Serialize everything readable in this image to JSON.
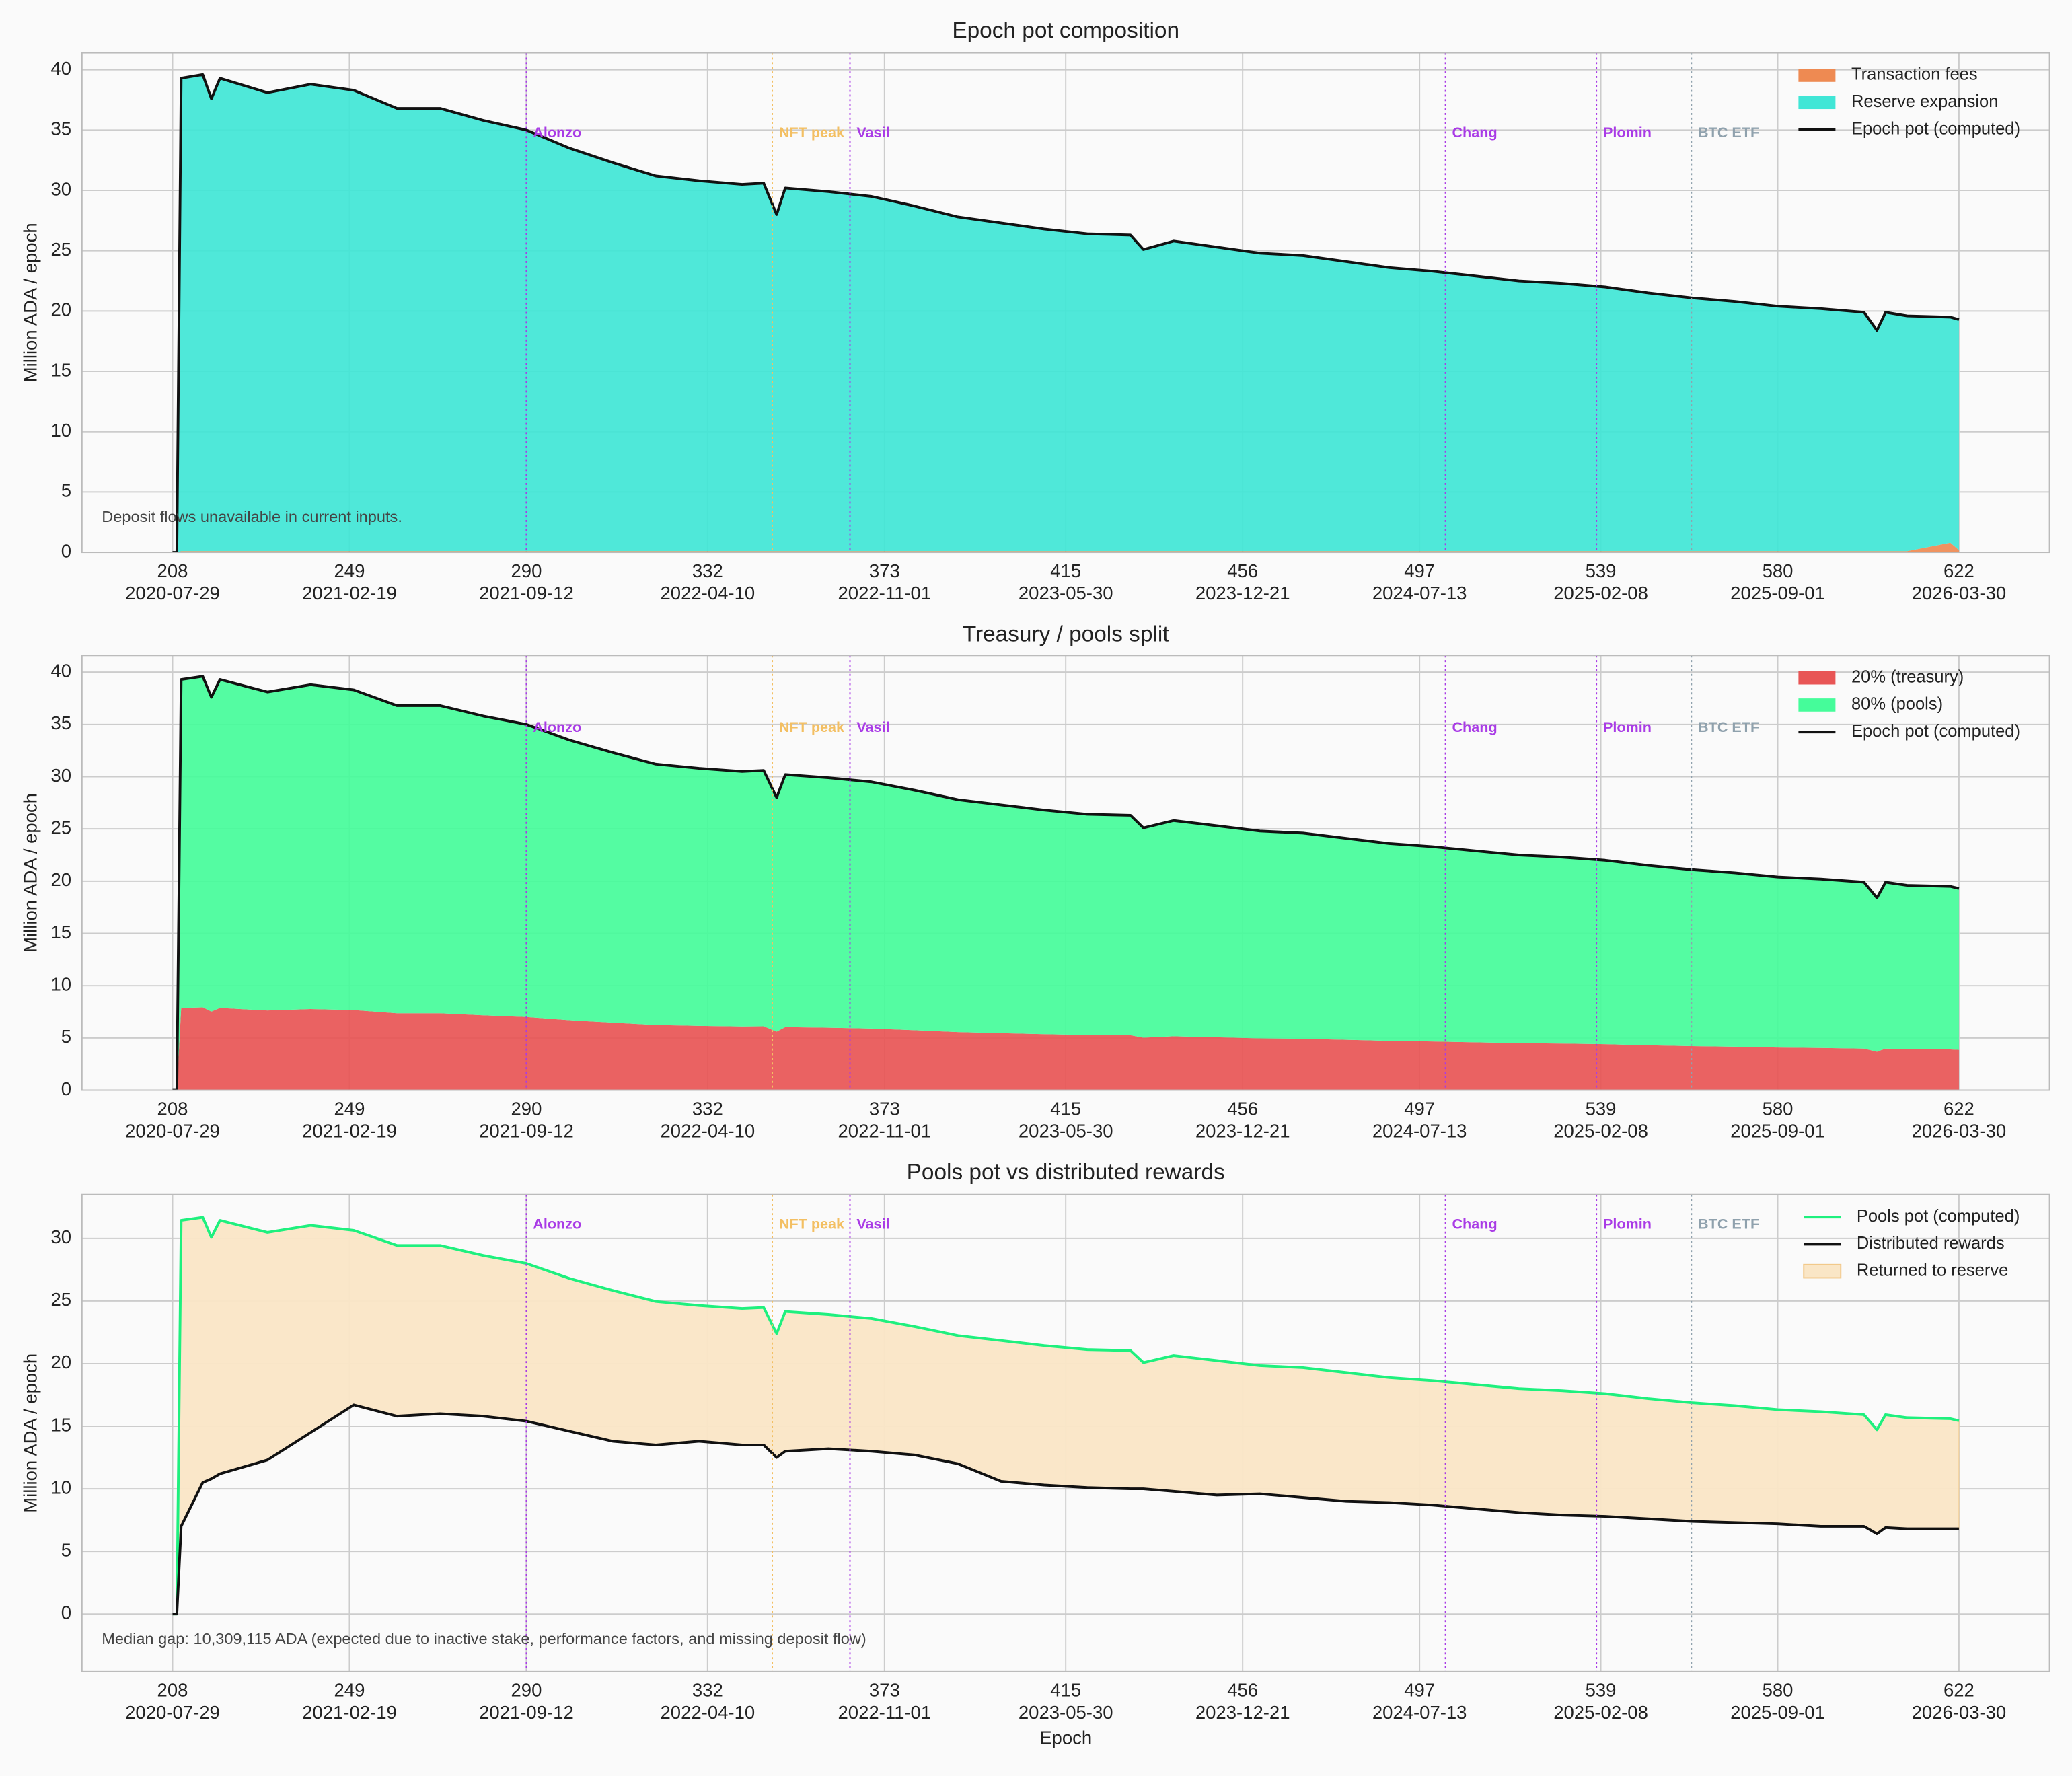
{
  "chart_data": [
    {
      "type": "stacked_area",
      "title": "Epoch pot composition",
      "ylabel": "Million ADA / epoch",
      "annotation": "Deposit flows unavailable in current inputs.",
      "legend": "upper right",
      "grid": true,
      "x": [
        208,
        209,
        210,
        215,
        217,
        219,
        230,
        240,
        250,
        260,
        270,
        280,
        290,
        300,
        310,
        320,
        330,
        340,
        345,
        348,
        350,
        360,
        370,
        380,
        390,
        400,
        410,
        420,
        430,
        433,
        440,
        450,
        460,
        470,
        480,
        490,
        500,
        510,
        520,
        530,
        540,
        550,
        560,
        570,
        580,
        590,
        600,
        603,
        605,
        610,
        620,
        622
      ],
      "series": [
        {
          "name": "Transaction fees",
          "color": "#ee8a52",
          "kind": "area",
          "values": [
            0,
            0,
            0.1,
            0.1,
            0.1,
            0.1,
            0.1,
            0.1,
            0.1,
            0.1,
            0.1,
            0.1,
            0.1,
            0.1,
            0.1,
            0.1,
            0.1,
            0.1,
            0.1,
            0.1,
            0.1,
            0.1,
            0.1,
            0.1,
            0.1,
            0.1,
            0.1,
            0.1,
            0.1,
            0.1,
            0.1,
            0.1,
            0.1,
            0.1,
            0.1,
            0.1,
            0.1,
            0.1,
            0.1,
            0.1,
            0.1,
            0.1,
            0.1,
            0.1,
            0.1,
            0.1,
            0.1,
            0.1,
            0.1,
            0.1,
            0.8,
            0.2
          ]
        },
        {
          "name": "Reserve expansion",
          "color": "#40e6d6",
          "kind": "area",
          "values": [
            0,
            0,
            39.2,
            39.5,
            37.5,
            39.2,
            38.0,
            38.7,
            38.2,
            36.7,
            36.7,
            35.7,
            34.9,
            33.4,
            32.2,
            31.1,
            30.7,
            30.4,
            30.5,
            27.9,
            30.1,
            29.8,
            29.4,
            28.6,
            27.7,
            27.2,
            26.7,
            26.3,
            26.2,
            25.0,
            25.7,
            25.2,
            24.7,
            24.5,
            24.0,
            23.5,
            23.2,
            22.8,
            22.4,
            22.2,
            21.9,
            21.4,
            21.0,
            20.7,
            20.3,
            20.1,
            19.8,
            18.3,
            19.8,
            19.5,
            18.7,
            19.1
          ]
        },
        {
          "name": "Epoch pot (computed)",
          "color": "#111111",
          "kind": "line",
          "values": [
            0,
            0,
            39.3,
            39.6,
            37.6,
            39.3,
            38.1,
            38.8,
            38.3,
            36.8,
            36.8,
            35.8,
            35.0,
            33.5,
            32.3,
            31.2,
            30.8,
            30.5,
            30.6,
            28.0,
            30.2,
            29.9,
            29.5,
            28.7,
            27.8,
            27.3,
            26.8,
            26.4,
            26.3,
            25.1,
            25.8,
            25.3,
            24.8,
            24.6,
            24.1,
            23.6,
            23.3,
            22.9,
            22.5,
            22.3,
            22.0,
            21.5,
            21.1,
            20.8,
            20.4,
            20.2,
            19.9,
            18.4,
            19.9,
            19.6,
            19.5,
            19.3
          ]
        }
      ],
      "events": [
        {
          "x": 290,
          "label": "Alonzo",
          "color": "#a93be6"
        },
        {
          "x": 347,
          "label": "NFT peak",
          "color": "#f3bf62"
        },
        {
          "x": 365,
          "label": "Vasil",
          "color": "#a93be6"
        },
        {
          "x": 503,
          "label": "Chang",
          "color": "#a93be6"
        },
        {
          "x": 538,
          "label": "Plomin",
          "color": "#a93be6"
        },
        {
          "x": 560,
          "label": "BTC ETF",
          "color": "#8fa1ad"
        }
      ],
      "xlim": [
        187,
        643
      ],
      "ylim": [
        0,
        41.4
      ],
      "xticks": [
        208,
        249,
        290,
        332,
        373,
        415,
        456,
        497,
        539,
        580,
        622
      ],
      "xtick_dates": [
        "2020-07-29",
        "2021-02-19",
        "2021-09-12",
        "2022-04-10",
        "2022-11-01",
        "2023-05-30",
        "2023-12-21",
        "2024-07-13",
        "2025-02-08",
        "2025-09-01",
        "2026-03-30"
      ],
      "yticks": [
        0,
        5,
        10,
        15,
        20,
        25,
        30,
        35,
        40
      ]
    },
    {
      "type": "stacked_area",
      "title": "Treasury / pools split",
      "ylabel": "Million ADA / epoch",
      "legend": "upper right",
      "grid": true,
      "x": [
        208,
        209,
        210,
        215,
        217,
        219,
        230,
        240,
        250,
        260,
        270,
        280,
        290,
        300,
        310,
        320,
        330,
        340,
        345,
        348,
        350,
        360,
        370,
        380,
        390,
        400,
        410,
        420,
        430,
        433,
        440,
        450,
        460,
        470,
        480,
        490,
        500,
        510,
        520,
        530,
        540,
        550,
        560,
        570,
        580,
        590,
        600,
        603,
        605,
        610,
        620,
        622
      ],
      "series": [
        {
          "name": "20% (treasury)",
          "color": "#e85555",
          "kind": "area",
          "values": [
            0,
            0,
            7.86,
            7.92,
            7.52,
            7.86,
            7.62,
            7.76,
            7.66,
            7.36,
            7.36,
            7.16,
            7.0,
            6.7,
            6.46,
            6.24,
            6.16,
            6.1,
            6.12,
            5.6,
            6.04,
            5.98,
            5.9,
            5.74,
            5.56,
            5.46,
            5.36,
            5.28,
            5.26,
            5.02,
            5.16,
            5.06,
            4.96,
            4.92,
            4.82,
            4.72,
            4.66,
            4.58,
            4.5,
            4.46,
            4.4,
            4.3,
            4.22,
            4.16,
            4.08,
            4.04,
            3.98,
            3.68,
            3.98,
            3.92,
            3.9,
            3.86
          ]
        },
        {
          "name": "80% (pools)",
          "color": "#45fc9a",
          "kind": "area",
          "values": [
            0,
            0,
            31.44,
            31.68,
            30.08,
            31.44,
            30.48,
            31.04,
            30.64,
            29.44,
            29.44,
            28.64,
            28.0,
            26.8,
            25.84,
            24.96,
            24.64,
            24.4,
            24.48,
            22.4,
            24.16,
            23.92,
            23.6,
            22.96,
            22.24,
            21.84,
            21.44,
            21.12,
            21.04,
            20.08,
            20.64,
            20.24,
            19.84,
            19.68,
            19.28,
            18.88,
            18.64,
            18.32,
            18.0,
            17.84,
            17.6,
            17.2,
            16.88,
            16.64,
            16.32,
            16.16,
            15.92,
            14.72,
            15.92,
            15.68,
            15.6,
            15.44
          ]
        },
        {
          "name": "Epoch pot (computed)",
          "color": "#111111",
          "kind": "line",
          "values": [
            0,
            0,
            39.3,
            39.6,
            37.6,
            39.3,
            38.1,
            38.8,
            38.3,
            36.8,
            36.8,
            35.8,
            35.0,
            33.5,
            32.3,
            31.2,
            30.8,
            30.5,
            30.6,
            28.0,
            30.2,
            29.9,
            29.5,
            28.7,
            27.8,
            27.3,
            26.8,
            26.4,
            26.3,
            25.1,
            25.8,
            25.3,
            24.8,
            24.6,
            24.1,
            23.6,
            23.3,
            22.9,
            22.5,
            22.3,
            22.0,
            21.5,
            21.1,
            20.8,
            20.4,
            20.2,
            19.9,
            18.4,
            19.9,
            19.6,
            19.5,
            19.3
          ]
        }
      ],
      "events": [
        {
          "x": 290,
          "label": "Alonzo",
          "color": "#a93be6"
        },
        {
          "x": 347,
          "label": "NFT peak",
          "color": "#f3bf62"
        },
        {
          "x": 365,
          "label": "Vasil",
          "color": "#a93be6"
        },
        {
          "x": 503,
          "label": "Chang",
          "color": "#a93be6"
        },
        {
          "x": 538,
          "label": "Plomin",
          "color": "#a93be6"
        },
        {
          "x": 560,
          "label": "BTC ETF",
          "color": "#8fa1ad"
        }
      ],
      "xlim": [
        187,
        643
      ],
      "ylim": [
        0,
        41.6
      ],
      "xticks": [
        208,
        249,
        290,
        332,
        373,
        415,
        456,
        497,
        539,
        580,
        622
      ],
      "xtick_dates": [
        "2020-07-29",
        "2021-02-19",
        "2021-09-12",
        "2022-04-10",
        "2022-11-01",
        "2023-05-30",
        "2023-12-21",
        "2024-07-13",
        "2025-02-08",
        "2025-09-01",
        "2026-03-30"
      ],
      "yticks": [
        0,
        5,
        10,
        15,
        20,
        25,
        30,
        35,
        40
      ]
    },
    {
      "type": "line_between",
      "title": "Pools pot vs distributed rewards",
      "ylabel": "Million ADA / epoch",
      "xlabel": "Epoch",
      "annotation": "Median gap: 10,309,115 ADA (expected due to inactive stake, performance factors, and missing deposit flow)",
      "legend": "upper right",
      "grid": true,
      "x": [
        208,
        209,
        210,
        215,
        217,
        219,
        230,
        240,
        250,
        260,
        270,
        280,
        290,
        300,
        310,
        320,
        330,
        340,
        345,
        348,
        350,
        360,
        370,
        380,
        390,
        400,
        410,
        420,
        430,
        433,
        440,
        450,
        460,
        470,
        480,
        490,
        500,
        510,
        520,
        530,
        540,
        550,
        560,
        570,
        580,
        590,
        600,
        603,
        605,
        610,
        620,
        622
      ],
      "series": [
        {
          "name": "Pools pot (computed)",
          "color": "#1ef07e",
          "kind": "line",
          "values": [
            0,
            0,
            31.44,
            31.68,
            30.08,
            31.44,
            30.48,
            31.04,
            30.64,
            29.44,
            29.44,
            28.64,
            28.0,
            26.8,
            25.84,
            24.96,
            24.64,
            24.4,
            24.48,
            22.4,
            24.16,
            23.92,
            23.6,
            22.96,
            22.24,
            21.84,
            21.44,
            21.12,
            21.04,
            20.08,
            20.64,
            20.24,
            19.84,
            19.68,
            19.28,
            18.88,
            18.64,
            18.32,
            18.0,
            17.84,
            17.6,
            17.2,
            16.88,
            16.64,
            16.32,
            16.16,
            15.92,
            14.72,
            15.92,
            15.68,
            15.6,
            15.44
          ]
        },
        {
          "name": "Distributed rewards",
          "color": "#111111",
          "kind": "line",
          "values": [
            0,
            0,
            7.0,
            10.5,
            10.8,
            11.2,
            12.3,
            14.5,
            16.7,
            15.8,
            16.0,
            15.8,
            15.4,
            14.6,
            13.8,
            13.5,
            13.8,
            13.5,
            13.5,
            12.5,
            13.0,
            13.2,
            13.0,
            12.7,
            12.0,
            10.6,
            10.3,
            10.1,
            10.0,
            10.0,
            9.8,
            9.5,
            9.6,
            9.3,
            9.0,
            8.9,
            8.7,
            8.4,
            8.1,
            7.9,
            7.8,
            7.6,
            7.4,
            7.3,
            7.2,
            7.0,
            7.0,
            6.4,
            6.9,
            6.8,
            6.8,
            6.8
          ]
        },
        {
          "name": "Returned to reserve",
          "color": "#fae6c6",
          "kind": "between"
        }
      ],
      "events": [
        {
          "x": 290,
          "label": "Alonzo",
          "color": "#a93be6"
        },
        {
          "x": 347,
          "label": "NFT peak",
          "color": "#f3bf62"
        },
        {
          "x": 365,
          "label": "Vasil",
          "color": "#a93be6"
        },
        {
          "x": 503,
          "label": "Chang",
          "color": "#a93be6"
        },
        {
          "x": 538,
          "label": "Plomin",
          "color": "#a93be6"
        },
        {
          "x": 560,
          "label": "BTC ETF",
          "color": "#8fa1ad"
        }
      ],
      "xlim": [
        187,
        643
      ],
      "ylim": [
        -4.6,
        33.5
      ],
      "xticks": [
        208,
        249,
        290,
        332,
        373,
        415,
        456,
        497,
        539,
        580,
        622
      ],
      "xtick_dates": [
        "2020-07-29",
        "2021-02-19",
        "2021-09-12",
        "2022-04-10",
        "2022-11-01",
        "2023-05-30",
        "2023-12-21",
        "2024-07-13",
        "2025-02-08",
        "2025-09-01",
        "2026-03-30"
      ],
      "yticks": [
        0,
        5,
        10,
        15,
        20,
        25,
        30
      ]
    }
  ]
}
